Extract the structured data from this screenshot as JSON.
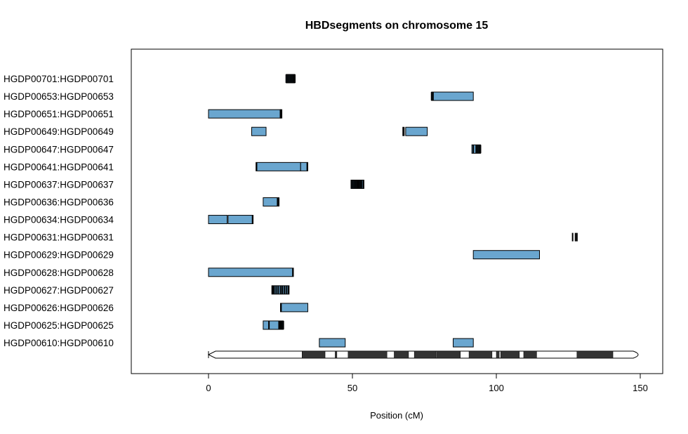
{
  "chart_data": {
    "type": "segment",
    "title": "HBDsegments on chromosome 15",
    "xlabel": "Position (cM)",
    "ylabel": "",
    "xlim": [
      -27,
      157
    ],
    "xticks": [
      0,
      50,
      100,
      150
    ],
    "xtick_labels": [
      "0",
      "50",
      "100",
      "150"
    ],
    "grid": false,
    "legend": "none",
    "colors": {
      "segment_fill": "#6aa6cf",
      "segment_stroke": "#000000",
      "band_dark": "#333333",
      "band_light": "#ffffff"
    },
    "rows": [
      {
        "label": "HGDP00701:HGDP00701",
        "segments": [
          [
            27.0,
            30.0
          ]
        ],
        "dark_marks": [
          27.0,
          27.5,
          28.0,
          28.5,
          29.0,
          29.5,
          30.0
        ]
      },
      {
        "label": "HGDP00653:HGDP00653",
        "segments": [
          [
            77.5,
            92.0
          ]
        ],
        "dark_marks": [
          77.5,
          78.0
        ]
      },
      {
        "label": "HGDP00651:HGDP00651",
        "segments": [
          [
            0.0,
            25.0
          ],
          [
            25.0,
            25.5
          ]
        ],
        "dark_marks": [
          25.0,
          25.3
        ]
      },
      {
        "label": "HGDP00649:HGDP00649",
        "segments": [
          [
            15.0,
            20.0
          ],
          [
            67.5,
            68.0
          ],
          [
            68.5,
            76.0
          ]
        ],
        "dark_marks": [
          67.7
        ]
      },
      {
        "label": "HGDP00647:HGDP00647",
        "segments": [
          [
            91.5,
            94.5
          ]
        ],
        "dark_marks": [
          92.0,
          93.0,
          93.5,
          94.0,
          94.5
        ]
      },
      {
        "label": "HGDP00641:HGDP00641",
        "segments": [
          [
            16.5,
            32.0
          ],
          [
            32.0,
            34.5
          ]
        ],
        "dark_marks": [
          16.7,
          34.3
        ]
      },
      {
        "label": "HGDP00637:HGDP00637",
        "segments": [
          [
            49.5,
            54.0
          ]
        ],
        "dark_marks": [
          49.7,
          50.2,
          50.7,
          51.2,
          51.7,
          52.2,
          52.7,
          53.2,
          53.8
        ]
      },
      {
        "label": "HGDP00636:HGDP00636",
        "segments": [
          [
            19.0,
            24.5
          ]
        ],
        "dark_marks": [
          24.0,
          24.4
        ]
      },
      {
        "label": "HGDP00634:HGDP00634",
        "segments": [
          [
            0.0,
            6.5
          ],
          [
            6.8,
            15.5
          ]
        ],
        "dark_marks": [
          15.3
        ]
      },
      {
        "label": "HGDP00631:HGDP00631",
        "segments": [],
        "dark_marks": [
          126.5,
          127.5,
          128.0
        ]
      },
      {
        "label": "HGDP00629:HGDP00629",
        "segments": [
          [
            92.0,
            115.0
          ]
        ],
        "dark_marks": []
      },
      {
        "label": "HGDP00628:HGDP00628",
        "segments": [
          [
            0.0,
            29.5
          ]
        ],
        "dark_marks": [
          29.3
        ]
      },
      {
        "label": "HGDP00627:HGDP00627",
        "segments": [
          [
            22.0,
            28.0
          ]
        ],
        "dark_marks": [
          22.3,
          22.8,
          23.5,
          24.2,
          25.0,
          25.6,
          26.3,
          27.0,
          27.7
        ]
      },
      {
        "label": "HGDP00626:HGDP00626",
        "segments": [
          [
            25.0,
            34.5
          ]
        ],
        "dark_marks": [
          25.2
        ]
      },
      {
        "label": "HGDP00625:HGDP00625",
        "segments": [
          [
            19.0,
            26.0
          ]
        ],
        "dark_marks": [
          21.0,
          24.5,
          25.0,
          25.5,
          26.0
        ]
      },
      {
        "label": "HGDP00610:HGDP00610",
        "segments": [
          [
            38.5,
            47.5
          ],
          [
            85.0,
            92.0
          ]
        ],
        "dark_marks": []
      }
    ],
    "ideogram": {
      "start": 0,
      "end": 150,
      "dark_bands": [
        [
          32.5,
          40.5
        ],
        [
          44.0,
          44.6
        ],
        [
          48.5,
          62.0
        ],
        [
          64.5,
          69.5
        ],
        [
          71.5,
          79.0
        ],
        [
          79.2,
          87.5
        ],
        [
          90.5,
          98.5
        ],
        [
          100.0,
          101.0
        ],
        [
          101.5,
          108.0
        ],
        [
          109.5,
          114.0
        ],
        [
          128.0,
          140.5
        ]
      ]
    }
  }
}
